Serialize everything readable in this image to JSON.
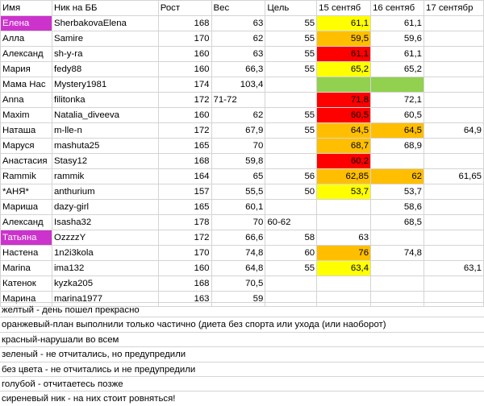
{
  "headers": [
    "Имя",
    "Ник на ББ",
    "Рост",
    "Вес",
    "Цель",
    "15 сентяб",
    "16 сентяб",
    "17 сентябр"
  ],
  "colors": {
    "yellow": "#ffff00",
    "orange": "#ffbf00",
    "red": "#ff0000",
    "green": "#92d050",
    "purple": "#cc33cc"
  },
  "rows": [
    {
      "name": "Елена",
      "nick": "SherbakovaElena",
      "height": "168",
      "weight": "63",
      "goal": "55",
      "d15": "61,1",
      "d16": "61,1",
      "d17": "",
      "name_bg": "purple",
      "d15_bg": "yellow",
      "d16_bg": "",
      "name_light": true
    },
    {
      "name": "Алла",
      "nick": "Samire",
      "height": "170",
      "weight": "62",
      "goal": "55",
      "d15": "59,5",
      "d16": "59,6",
      "d17": "",
      "name_bg": "",
      "d15_bg": "orange",
      "d16_bg": ""
    },
    {
      "name": "Александ",
      "nick": "sh-y-ra",
      "height": "160",
      "weight": "63",
      "goal": "55",
      "d15": "61,1",
      "d16": "61,1",
      "d17": "",
      "name_bg": "",
      "d15_bg": "red",
      "d16_bg": ""
    },
    {
      "name": "Мария",
      "nick": "fedy88",
      "height": "160",
      "weight": "66,3",
      "goal": "55",
      "d15": "65,2",
      "d16": "65,2",
      "d17": "",
      "name_bg": "",
      "d15_bg": "yellow",
      "d16_bg": ""
    },
    {
      "name": "Мама Нас",
      "nick": "Mystery1981",
      "height": "174",
      "weight": "103,4",
      "goal": "",
      "d15": "",
      "d16": "",
      "d17": "",
      "name_bg": "",
      "d15_bg": "green",
      "d16_bg": "green"
    },
    {
      "name": "Anna",
      "nick": "filitonka",
      "height": "172",
      "weight": "71-72",
      "goal": "",
      "d15": "71,8",
      "d16": "72,1",
      "d17": "",
      "name_bg": "",
      "d15_bg": "red",
      "d16_bg": "",
      "weight_left": true
    },
    {
      "name": "Maxim",
      "nick": "Natalia_diveeva",
      "height": "160",
      "weight": "62",
      "goal": "55",
      "d15": "60,5",
      "d16": "60,5",
      "d17": "",
      "name_bg": "",
      "d15_bg": "red",
      "d16_bg": ""
    },
    {
      "name": "Наташа",
      "nick": "m-lle-n",
      "height": "172",
      "weight": "67,9",
      "goal": "55",
      "d15": "64,5",
      "d16": "64,5",
      "d17": "64,9",
      "name_bg": "",
      "d15_bg": "orange",
      "d16_bg": "orange"
    },
    {
      "name": "Маруся",
      "nick": "mashuta25",
      "height": "165",
      "weight": "70",
      "goal": "",
      "d15": "68,7",
      "d16": "68,9",
      "d17": "",
      "name_bg": "",
      "d15_bg": "orange",
      "d16_bg": ""
    },
    {
      "name": "Анастасия",
      "nick": "Stasy12",
      "height": "168",
      "weight": "59,8",
      "goal": "",
      "d15": "60,2",
      "d16": "",
      "d17": "",
      "name_bg": "",
      "d15_bg": "red",
      "d16_bg": ""
    },
    {
      "name": "Rammik",
      "nick": "rammik",
      "height": "164",
      "weight": "65",
      "goal": "56",
      "d15": "62,85",
      "d16": "62",
      "d17": "61,65",
      "name_bg": "",
      "d15_bg": "orange",
      "d16_bg": "orange"
    },
    {
      "name": "*АНЯ*",
      "nick": "anthurium",
      "height": "157",
      "weight": "55,5",
      "goal": "50",
      "d15": "53,7",
      "d16": "53,7",
      "d17": "",
      "name_bg": "",
      "d15_bg": "yellow",
      "d16_bg": ""
    },
    {
      "name": "Мариша",
      "nick": "dazy-girl",
      "height": "165",
      "weight": "60,1",
      "goal": "",
      "d15": "",
      "d16": "58,6",
      "d17": "",
      "name_bg": "",
      "d15_bg": "",
      "d16_bg": ""
    },
    {
      "name": "Александ",
      "nick": "Isasha32",
      "height": "178",
      "weight": "70",
      "goal": "60-62",
      "d15": "",
      "d16": "68,5",
      "d17": "",
      "name_bg": "",
      "d15_bg": "",
      "d16_bg": "",
      "goal_left": true
    },
    {
      "name": "Татьяна",
      "nick": "OzzzzY",
      "height": "172",
      "weight": "66,6",
      "goal": "58",
      "d15": "63",
      "d16": "",
      "d17": "",
      "name_bg": "purple",
      "d15_bg": "",
      "d16_bg": "",
      "name_light": true
    },
    {
      "name": "Настена",
      "nick": "1n2i3kola",
      "height": "170",
      "weight": "74,8",
      "goal": "60",
      "d15": "76",
      "d16": "74,8",
      "d17": "",
      "name_bg": "",
      "d15_bg": "orange",
      "d16_bg": ""
    },
    {
      "name": "Marina",
      "nick": "ima132",
      "height": "160",
      "weight": "64,8",
      "goal": "55",
      "d15": "63,4",
      "d16": "",
      "d17": "63,1",
      "name_bg": "",
      "d15_bg": "yellow",
      "d16_bg": ""
    },
    {
      "name": "Катенок",
      "nick": "kyzka205",
      "height": "168",
      "weight": "70,5",
      "goal": "",
      "d15": "",
      "d16": "",
      "d17": "",
      "name_bg": "",
      "d15_bg": "",
      "d16_bg": ""
    },
    {
      "name": "Марина",
      "nick": "marina1977",
      "height": "163",
      "weight": "59",
      "goal": "",
      "d15": "",
      "d16": "",
      "d17": "",
      "name_bg": "",
      "d15_bg": "",
      "d16_bg": ""
    }
  ],
  "legend": [
    "желтый - день пошел прекрасно",
    "оранжевый-план выполнили только частично (диета без спорта или ухода (или наоборот)",
    "красный-нарушали во всем",
    "зеленый - не отчитались, но предупредили",
    "без цвета - не отчитались и не предупредили",
    "голубой - отчитаетесь позже",
    "сиреневый ник - на них стоит ровняться!"
  ]
}
